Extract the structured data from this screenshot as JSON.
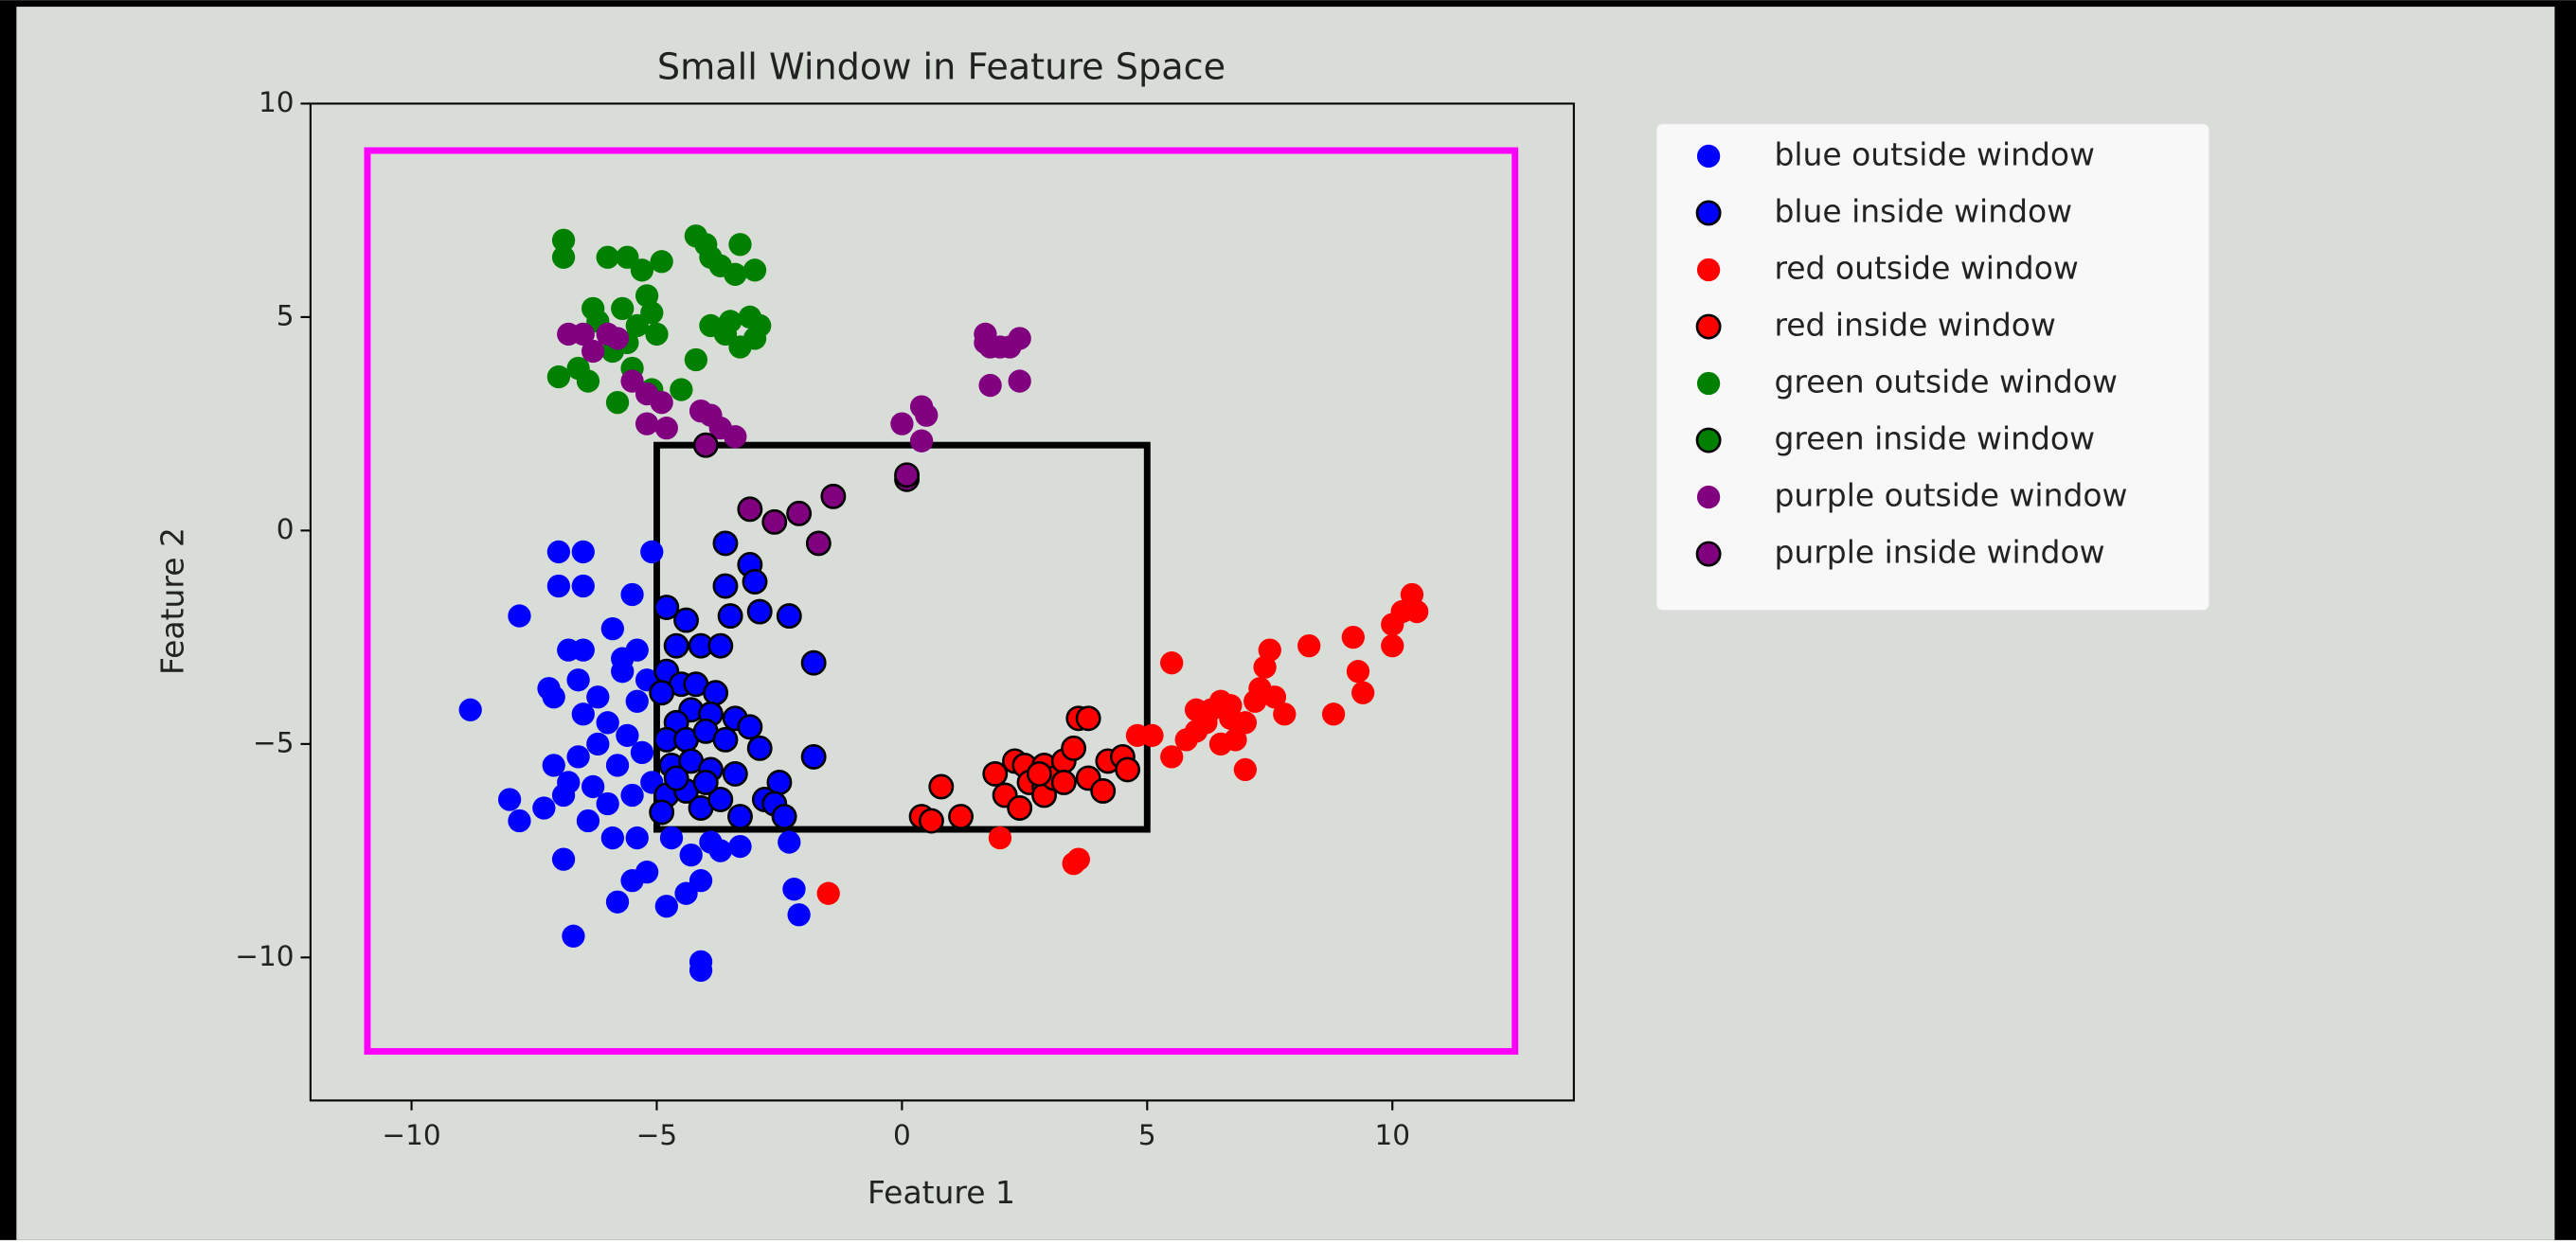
{
  "chart_data": {
    "type": "scatter",
    "title": "Small Window in Feature Space",
    "xlabel": "Feature 1",
    "ylabel": "Feature 2",
    "xlim": [
      -12.06,
      13.7
    ],
    "ylim": [
      -13.35,
      10
    ],
    "xticks": [
      {
        "value": -10,
        "label": "−10"
      },
      {
        "value": -5,
        "label": "−5"
      },
      0,
      5,
      10
    ],
    "yticks": [
      {
        "value": -10,
        "label": "−10"
      },
      {
        "value": -5,
        "label": "−5"
      },
      0,
      5,
      10
    ],
    "legend": "outside upper right",
    "rectangles": [
      {
        "x": [
          -10.9,
          12.5
        ],
        "y": [
          -12.2,
          8.9
        ],
        "color": "#ff00ff"
      },
      {
        "x": [
          -5,
          5
        ],
        "y": [
          -7,
          2
        ],
        "color": "#000000"
      }
    ],
    "series": [
      {
        "name": "blue outside window",
        "color": "#0000ff",
        "x": [
          -8.8,
          -8,
          -7.8,
          -7.8,
          -7,
          -6.5,
          -7,
          -6.5,
          -6.8,
          -6.5,
          -7.2,
          -7.1,
          -6.6,
          -6.2,
          -6.5,
          -6,
          -7.1,
          -6.8,
          -6.6,
          -7.3,
          -6.9,
          -6.9,
          -6.4,
          -6,
          -6.7,
          -5.8,
          -5.5,
          -5.2,
          -5.4,
          -5.9,
          -5.5,
          -5.8,
          -5.6,
          -5.3,
          -5.1,
          -5.4,
          -5.7,
          -5.9,
          -5.4,
          -5.2,
          -5.5,
          -5.1,
          -4.8,
          -4.4,
          -4.1,
          -4.1,
          -4.1,
          -3.7,
          -3.3,
          -2.3,
          -2.2,
          -2.1,
          -4.7,
          -4.3,
          -3.9,
          -5.7,
          -6.2,
          -6.3
        ],
        "y": [
          -4.2,
          -6.3,
          -6.8,
          -2,
          -0.5,
          -0.5,
          -1.3,
          -1.3,
          -2.8,
          -2.8,
          -3.7,
          -3.9,
          -3.5,
          -3.9,
          -4.3,
          -4.5,
          -5.5,
          -5.9,
          -5.3,
          -6.5,
          -6.2,
          -7.7,
          -6.8,
          -6.4,
          -9.5,
          -8.7,
          -8.2,
          -8,
          -7.2,
          -7.2,
          -6.2,
          -5.5,
          -4.8,
          -5.2,
          -5.9,
          -4,
          -3.3,
          -2.3,
          -2.8,
          -3.5,
          -1.5,
          -0.5,
          -8.8,
          -8.5,
          -8.2,
          -10.1,
          -10.3,
          -7.5,
          -7.4,
          -7.3,
          -8.4,
          -9,
          -7.2,
          -7.6,
          -7.3,
          -3,
          -5,
          -6
        ]
      },
      {
        "name": "blue inside window",
        "color": "#0000ff",
        "edgecolor": "#000000",
        "x": [
          -3.6,
          -3.1,
          -3,
          -3.6,
          -4.4,
          -3.5,
          -2.9,
          -2.3,
          -4.8,
          -4.6,
          -4.1,
          -3.7,
          -1.8,
          -4.8,
          -4.5,
          -4.2,
          -3.8,
          -4.9,
          -4.3,
          -3.9,
          -3.4,
          -3.1,
          -4.6,
          -4.8,
          -4.4,
          -4,
          -3.6,
          -2.9,
          -4.7,
          -4.3,
          -3.9,
          -3.4,
          -1.8,
          -2.5,
          -4.8,
          -4.4,
          -4.1,
          -3.7,
          -2.8,
          -2.6,
          -2.4,
          -4.9,
          -3.3,
          -4,
          -4.6
        ],
        "y": [
          -0.3,
          -0.8,
          -1.2,
          -1.3,
          -2.1,
          -2,
          -1.9,
          -2,
          -1.8,
          -2.7,
          -2.7,
          -2.7,
          -3.1,
          -3.3,
          -3.6,
          -3.6,
          -3.8,
          -3.8,
          -4.2,
          -4.3,
          -4.4,
          -4.6,
          -4.5,
          -4.9,
          -4.9,
          -4.7,
          -4.9,
          -5.1,
          -5.5,
          -5.4,
          -5.6,
          -5.7,
          -5.3,
          -5.9,
          -6.2,
          -6.1,
          -6.5,
          -6.3,
          -6.3,
          -6.4,
          -6.7,
          -6.6,
          -6.7,
          -5.9,
          -5.8
        ]
      },
      {
        "name": "red outside window",
        "color": "#ff0000",
        "x": [
          5.5,
          5.1,
          4.8,
          5.5,
          5.8,
          6,
          6.2,
          6.3,
          6.5,
          6.7,
          6.5,
          6.8,
          7,
          7,
          7.2,
          7.3,
          7.4,
          7.5,
          7.6,
          7.8,
          8.3,
          8.8,
          9.2,
          9.3,
          9.4,
          10,
          10,
          10.2,
          10.4,
          10.5,
          3.6,
          3.5,
          2,
          -1.5,
          6,
          6.7
        ],
        "y": [
          -3.1,
          -4.8,
          -4.8,
          -5.3,
          -4.9,
          -4.7,
          -4.5,
          -4.2,
          -4,
          -4.4,
          -5,
          -4.9,
          -4.5,
          -5.6,
          -4,
          -3.7,
          -3.2,
          -2.8,
          -3.9,
          -4.3,
          -2.7,
          -4.3,
          -2.5,
          -3.3,
          -3.8,
          -2.2,
          -2.7,
          -1.9,
          -1.5,
          -1.9,
          -7.7,
          -7.8,
          -7.2,
          -8.5,
          -4.2,
          -4.1
        ]
      },
      {
        "name": "red inside window",
        "color": "#ff0000",
        "edgecolor": "#000000",
        "x": [
          0.4,
          0.6,
          0.8,
          1.2,
          1.9,
          2.1,
          2.3,
          2.5,
          2.4,
          2.6,
          2.9,
          2.9,
          2.9,
          3.1,
          3.3,
          3.5,
          3.6,
          3.8,
          3.8,
          4.1,
          4.2,
          4.5,
          4.6,
          3.3,
          2.8
        ],
        "y": [
          -6.7,
          -6.8,
          -6,
          -6.7,
          -5.7,
          -6.2,
          -5.4,
          -5.5,
          -6.5,
          -5.9,
          -5.5,
          -6,
          -6.2,
          -5.8,
          -5.4,
          -5.1,
          -4.4,
          -4.4,
          -5.8,
          -6.1,
          -5.4,
          -5.3,
          -5.6,
          -5.9,
          -5.7
        ]
      },
      {
        "name": "green outside window",
        "color": "#008000",
        "x": [
          -7,
          -6.9,
          -6.9,
          -6.6,
          -6.4,
          -6.3,
          -6.2,
          -6,
          -5.9,
          -5.7,
          -5.6,
          -5.6,
          -5.4,
          -5.3,
          -5.2,
          -5.1,
          -5,
          -4.9,
          -5.1,
          -4.5,
          -4.2,
          -4.2,
          -4,
          -3.9,
          -3.9,
          -3.7,
          -3.5,
          -3.4,
          -3.3,
          -3.1,
          -3,
          -3,
          -3.3,
          -2.9,
          -3.6,
          -5.8,
          -5.5
        ],
        "y": [
          3.6,
          6.8,
          6.4,
          3.8,
          3.5,
          5.2,
          4.9,
          6.4,
          4.2,
          5.2,
          6.4,
          4.4,
          4.8,
          6.1,
          5.5,
          5.1,
          4.6,
          6.3,
          3.3,
          3.3,
          4,
          6.9,
          6.7,
          4.8,
          6.4,
          6.2,
          4.9,
          6,
          6.7,
          5,
          4.5,
          6.1,
          4.3,
          4.8,
          4.6,
          3,
          3.8
        ]
      },
      {
        "name": "green inside window",
        "color": "#008000",
        "edgecolor": "#000000",
        "x": [],
        "y": []
      },
      {
        "name": "purple outside window",
        "color": "#800080",
        "x": [
          -6.8,
          -6.5,
          -6.3,
          -6,
          -5.8,
          -5.5,
          -5.2,
          -4.9,
          -5.2,
          -4.8,
          -4.1,
          -3.9,
          -3.7,
          -3.4,
          0,
          0.4,
          0.5,
          0.4,
          1.7,
          1.7,
          1.8,
          2,
          2.2,
          2.4,
          2.4,
          1.8
        ],
        "y": [
          4.6,
          4.6,
          4.2,
          4.6,
          4.5,
          3.5,
          3.2,
          3,
          2.5,
          2.4,
          2.8,
          2.7,
          2.4,
          2.2,
          2.5,
          2.9,
          2.7,
          2.1,
          4.6,
          4.4,
          3.4,
          4.3,
          4.3,
          4.5,
          3.5,
          4.3
        ]
      },
      {
        "name": "purple inside window",
        "color": "#800080",
        "edgecolor": "#000000",
        "x": [
          -4,
          -3.1,
          -2.6,
          -2.1,
          -1.4,
          -1.7,
          0.1,
          0.1
        ],
        "y": [
          2,
          0.5,
          0.2,
          0.4,
          0.8,
          -0.3,
          1.2,
          1.3
        ]
      }
    ]
  }
}
